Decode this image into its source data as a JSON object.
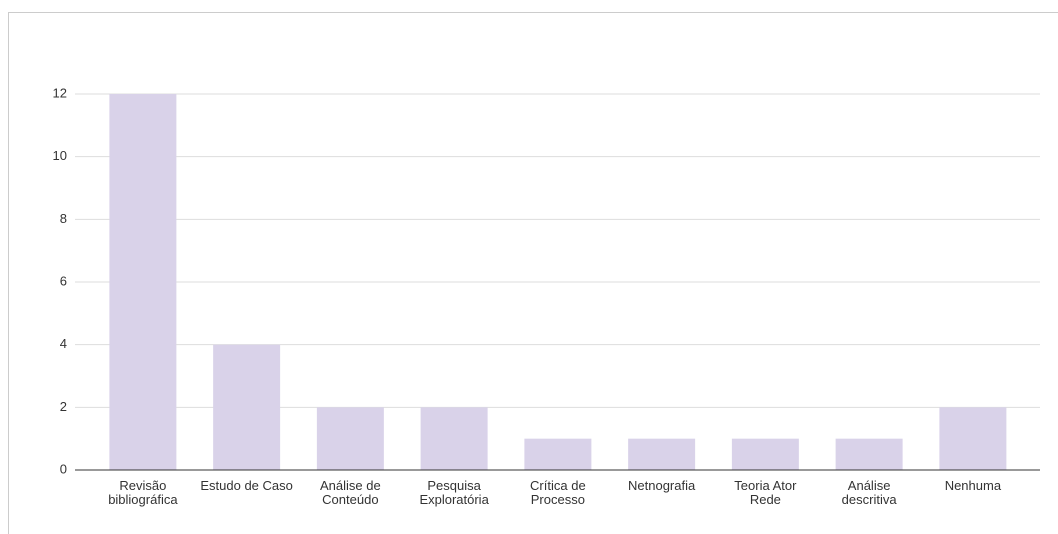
{
  "chart_data": {
    "type": "bar",
    "categories": [
      "Revisão bibliográfica",
      "Estudo de Caso",
      "Análise de Conteúdo",
      "Pesquisa Exploratória",
      "Crítica de Processo",
      "Netnografia",
      "Teoria Ator Rede",
      "Análise descritiva",
      "Nenhuma"
    ],
    "values": [
      12,
      4,
      2,
      2,
      1,
      1,
      1,
      1,
      2
    ],
    "color": "#d9d2e9",
    "ylim": [
      0,
      12
    ],
    "yticks": [
      0,
      2,
      4,
      6,
      8,
      10,
      12
    ],
    "grid": true
  }
}
